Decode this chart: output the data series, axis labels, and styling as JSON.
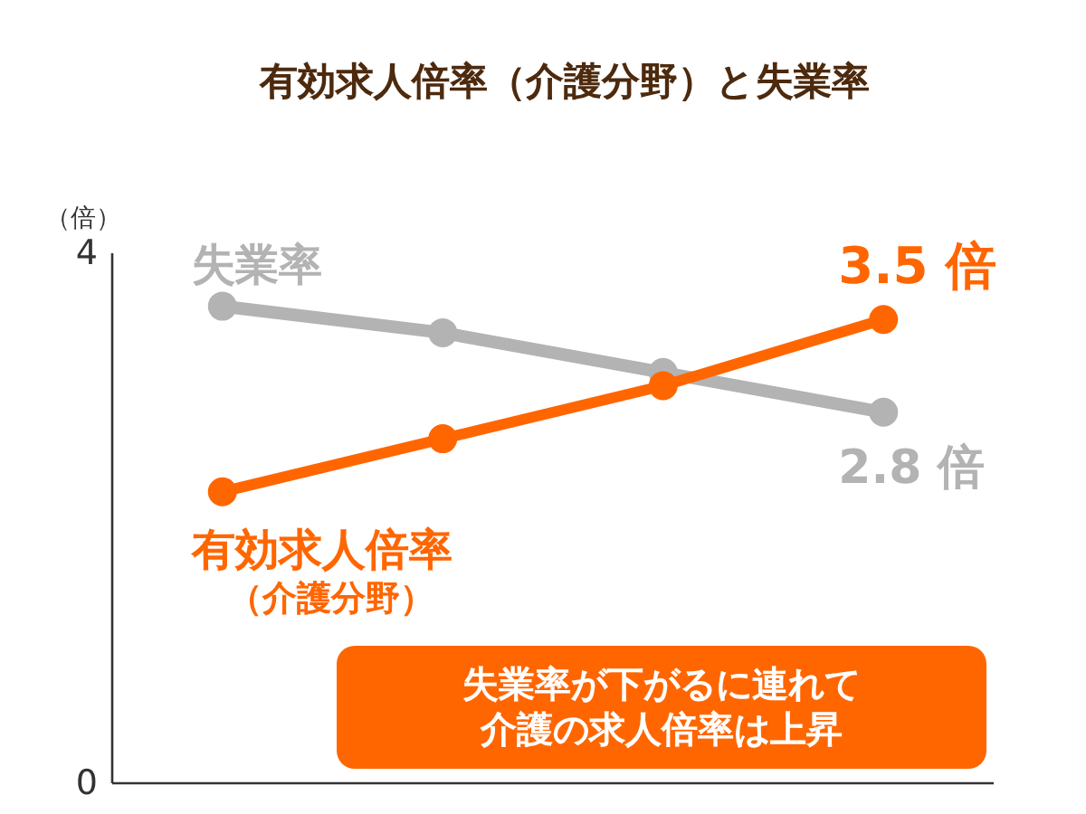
{
  "chart_data": {
    "type": "line",
    "title": "有効求人倍率（介護分野）と失業率",
    "ylabel": "（倍）",
    "categories": [
      null,
      null,
      null,
      null
    ],
    "series": [
      {
        "name": "失業率",
        "color": "#b3b3b3",
        "values": [
          3.6,
          3.4,
          3.1,
          2.8
        ],
        "value_labels": [
          null,
          null,
          null,
          "2.8 倍"
        ]
      },
      {
        "name": "有効求人倍率（介護分野）",
        "color": "#ff6600",
        "values": [
          2.2,
          2.6,
          3.0,
          3.5
        ],
        "value_labels": [
          null,
          null,
          null,
          "3.5 倍"
        ]
      }
    ],
    "ylim": [
      0,
      4
    ],
    "yticks": [
      0,
      4
    ],
    "tick_labels": "y",
    "grid": false,
    "marker": "circle",
    "line_style": "solid",
    "annotations": [
      "失業率が下がるに連れて介護の求人倍率は上昇"
    ]
  }
}
